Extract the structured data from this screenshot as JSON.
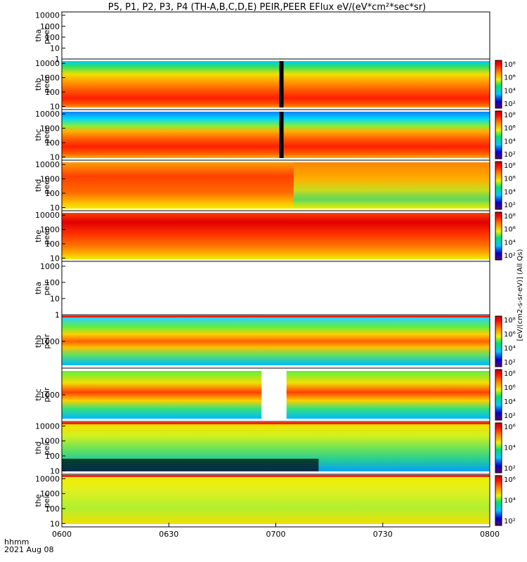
{
  "chart_data": {
    "type": "heatmap",
    "title": "P5, P1, P2, P3, P4 (TH-A,B,C,D,E) PEIR,PEER EFlux eV/(eV*cm²*sec*sr)",
    "xlabel": "hhmm",
    "date_label": "2021 Aug 08",
    "x_ticks": [
      "0600",
      "0630",
      "0700",
      "0730",
      "0800"
    ],
    "x_range": [
      "0600",
      "0800"
    ],
    "colorbar_unit": "[eV/(cm2-s-sr-eV)] (All Qs)",
    "panels": [
      {
        "id": "tha-peer",
        "label": [
          "tha",
          "peer"
        ],
        "yscale": "log",
        "ylim": [
          1,
          20000
        ],
        "yticks": [
          "1",
          "10",
          "100",
          "1000",
          "10000"
        ],
        "has_data": false,
        "colorbar": false
      },
      {
        "id": "thb-peer",
        "label": [
          "thb",
          "peer"
        ],
        "yscale": "log",
        "ylim": [
          6,
          20000
        ],
        "yticks": [
          "10",
          "100",
          "1000",
          "10000"
        ],
        "has_data": true,
        "colorbar": true,
        "cb_ticks": [
          "10⁸",
          "10⁶",
          "10⁴",
          "10²"
        ]
      },
      {
        "id": "thc-peer",
        "label": [
          "thc",
          "peer"
        ],
        "yscale": "log",
        "ylim": [
          6,
          20000
        ],
        "yticks": [
          "10",
          "100",
          "1000",
          "10000"
        ],
        "has_data": true,
        "colorbar": true,
        "cb_ticks": [
          "10⁸",
          "10⁶",
          "10⁴",
          "10²"
        ]
      },
      {
        "id": "thd-peer",
        "label": [
          "thd",
          "peer"
        ],
        "yscale": "log",
        "ylim": [
          6,
          20000
        ],
        "yticks": [
          "10",
          "100",
          "1000",
          "10000"
        ],
        "has_data": true,
        "colorbar": true,
        "cb_ticks": [
          "10⁸",
          "10⁶",
          "10⁴",
          "10²"
        ]
      },
      {
        "id": "the-peer",
        "label": [
          "the",
          "peer"
        ],
        "yscale": "log",
        "ylim": [
          6,
          20000
        ],
        "yticks": [
          "10",
          "100",
          "1000",
          "10000"
        ],
        "has_data": true,
        "colorbar": true,
        "cb_ticks": [
          "10⁸",
          "10⁶",
          "10⁴",
          "10²"
        ]
      },
      {
        "id": "tha-peir",
        "label": [
          "tha",
          "peir"
        ],
        "yscale": "log",
        "ylim": [
          1,
          2000
        ],
        "yticks": [
          "1",
          "10",
          "100",
          "1000"
        ],
        "has_data": false,
        "colorbar": false
      },
      {
        "id": "thb-peir",
        "label": [
          "thb",
          "peir"
        ],
        "yscale": "log",
        "ylim": [
          100,
          10000
        ],
        "yticks": [
          "1000"
        ],
        "has_data": true,
        "colorbar": true,
        "cb_ticks": [
          "10⁸",
          "10⁶",
          "10⁴",
          "10²"
        ]
      },
      {
        "id": "thc-peir",
        "label": [
          "thc",
          "peir"
        ],
        "yscale": "log",
        "ylim": [
          100,
          10000
        ],
        "yticks": [
          "1000"
        ],
        "has_data": true,
        "colorbar": true,
        "cb_ticks": [
          "10⁸",
          "10⁶",
          "10⁴",
          "10²"
        ]
      },
      {
        "id": "thd-peir",
        "label": [
          "thd",
          "peir"
        ],
        "yscale": "log",
        "ylim": [
          6,
          20000
        ],
        "yticks": [
          "10",
          "100",
          "1000",
          "10000"
        ],
        "has_data": true,
        "colorbar": true,
        "cb_ticks": [
          "10⁶",
          "10⁴",
          "10²"
        ]
      },
      {
        "id": "the-peir",
        "label": [
          "the",
          "peir"
        ],
        "yscale": "log",
        "ylim": [
          6,
          20000
        ],
        "yticks": [
          "10",
          "100",
          "1000",
          "10000"
        ],
        "has_data": true,
        "colorbar": true,
        "cb_ticks": [
          "10⁶",
          "10⁴",
          "10²"
        ]
      }
    ]
  }
}
